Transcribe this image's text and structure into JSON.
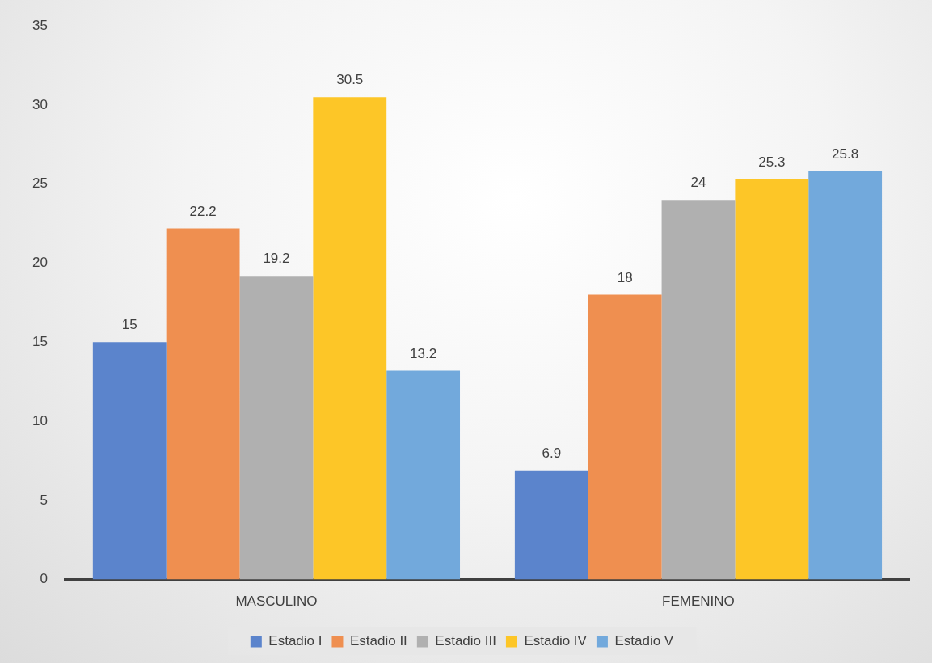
{
  "chart_data": {
    "type": "bar",
    "categories": [
      "MASCULINO",
      "FEMENINO"
    ],
    "series": [
      {
        "name": "Estadio I",
        "color": "#5b84cc",
        "values": [
          15,
          6.9
        ]
      },
      {
        "name": "Estadio II",
        "color": "#ef8f50",
        "values": [
          22.2,
          18
        ]
      },
      {
        "name": "Estadio III",
        "color": "#b0b0b0",
        "values": [
          19.2,
          24
        ]
      },
      {
        "name": "Estadio IV",
        "color": "#fdc627",
        "values": [
          30.5,
          25.3
        ]
      },
      {
        "name": "Estadio V",
        "color": "#72a9dc",
        "values": [
          13.2,
          25.8
        ]
      }
    ],
    "ylim": [
      0,
      35
    ],
    "yticks": [
      0,
      5,
      10,
      15,
      20,
      25,
      30,
      35
    ],
    "grid": false,
    "legend": "bottom",
    "data_labels": true
  }
}
